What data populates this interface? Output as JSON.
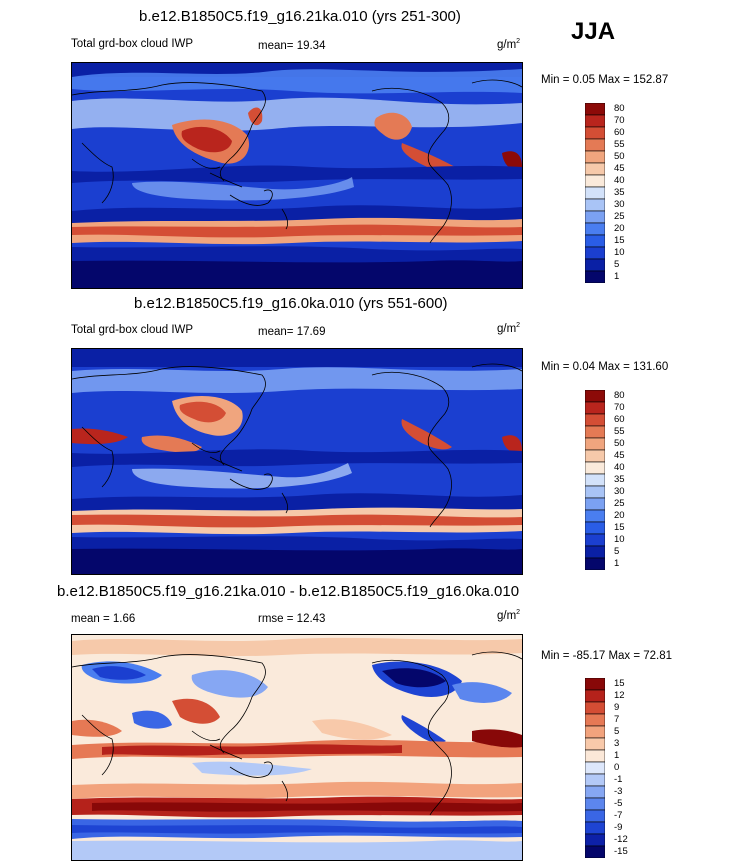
{
  "season_label": "JJA",
  "colorbar_ramp_abs": [
    "#04066b",
    "#0a20a5",
    "#1b3fd0",
    "#2a5de6",
    "#4a7ef0",
    "#7ba1f2",
    "#a9c4f6",
    "#d3e2fa",
    "#faeadb",
    "#f6c9aa",
    "#f0a57e",
    "#e47a55",
    "#d44e35",
    "#b9251d",
    "#8c0a08"
  ],
  "colorbar_ramp_diff": [
    "#04066b",
    "#0d21a8",
    "#1e44d3",
    "#3a66e5",
    "#5c86ee",
    "#86a7f3",
    "#b3c9f7",
    "#dde7fb",
    "#fbe8d8",
    "#f8c9aa",
    "#f2a37d",
    "#e67955",
    "#d44d34",
    "#b5221b",
    "#880808"
  ],
  "chart_data": [
    {
      "type": "heatmap",
      "title": "b.e12.B1850C5.f19_g16.21ka.010 (yrs 251-300)",
      "variable_label": "Total grd-box cloud IWP",
      "mean_label": "mean=",
      "mean": "19.34",
      "units_base": "g/m",
      "units_exp": "2",
      "min_max_label": "Min =   0.05 Max = 152.87",
      "min": 0.05,
      "max": 152.87,
      "colorbar_levels": [
        "80",
        "70",
        "60",
        "55",
        "50",
        "45",
        "40",
        "35",
        "30",
        "25",
        "20",
        "15",
        "10",
        "5",
        "1"
      ]
    },
    {
      "type": "heatmap",
      "title": "b.e12.B1850C5.f19_g16.0ka.010 (yrs 551-600)",
      "variable_label": "Total grd-box cloud IWP",
      "mean_label": "mean=",
      "mean": "17.69",
      "units_base": "g/m",
      "units_exp": "2",
      "min_max_label": "Min =   0.04 Max = 131.60",
      "min": 0.04,
      "max": 131.6,
      "colorbar_levels": [
        "80",
        "70",
        "60",
        "55",
        "50",
        "45",
        "40",
        "35",
        "30",
        "25",
        "20",
        "15",
        "10",
        "5",
        "1"
      ]
    },
    {
      "type": "heatmap",
      "title": "b.e12.B1850C5.f19_g16.21ka.010 - b.e12.B1850C5.f19_g16.0ka.010",
      "mean_label": "mean =",
      "mean": "1.66",
      "rmse_label": "rmse =",
      "rmse": "12.43",
      "units_base": "g/m",
      "units_exp": "2",
      "min_max_label": "Min = -85.17 Max =  72.81",
      "min": -85.17,
      "max": 72.81,
      "colorbar_levels": [
        "15",
        "12",
        "9",
        "7",
        "5",
        "3",
        "1",
        "0",
        "-1",
        "-3",
        "-5",
        "-7",
        "-9",
        "-12",
        "-15"
      ]
    }
  ]
}
